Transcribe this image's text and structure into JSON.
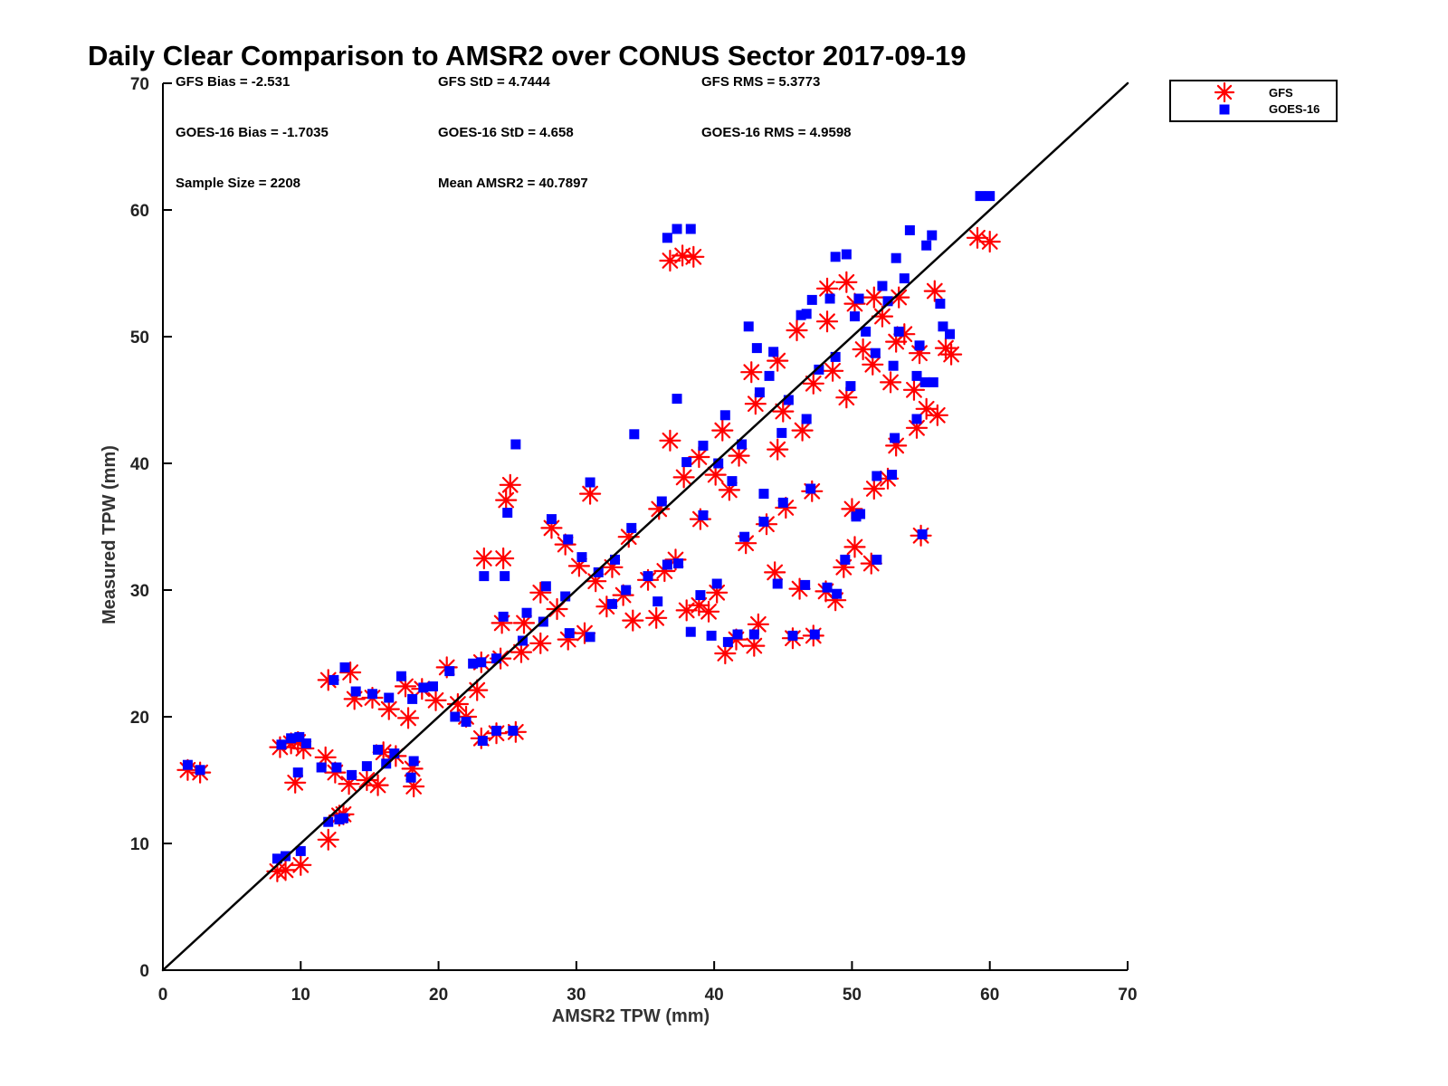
{
  "chart_data": {
    "type": "scatter",
    "title": "Daily Clear Comparison to AMSR2 over CONUS Sector 2017-09-19",
    "xlabel": "AMSR2 TPW (mm)",
    "ylabel": "Measured TPW (mm)",
    "xlim": [
      0,
      70
    ],
    "ylim": [
      0,
      70
    ],
    "xticks": [
      "0",
      "10",
      "20",
      "30",
      "40",
      "50",
      "60",
      "70"
    ],
    "yticks": [
      "0",
      "10",
      "20",
      "30",
      "40",
      "50",
      "60",
      "70"
    ],
    "legend_position": "top-right-outside",
    "grid": false,
    "reference_line": {
      "x": [
        0,
        70
      ],
      "y": [
        0,
        70
      ],
      "color": "#000000"
    },
    "stats": [
      "GFS Bias = -2.531",
      "GFS StD = 4.7444",
      "GFS RMS = 5.3773",
      "GOES-16 Bias = -1.7035",
      "GOES-16 StD = 4.658",
      "GOES-16 RMS = 4.9598",
      "Sample Size = 2208",
      "Mean AMSR2 = 40.7897"
    ],
    "series": [
      {
        "name": "GFS",
        "marker": "asterisk",
        "color": "#ff0000",
        "points": [
          [
            1.8,
            15.8
          ],
          [
            2.7,
            15.6
          ],
          [
            8.3,
            7.8
          ],
          [
            8.9,
            7.9
          ],
          [
            10.0,
            8.3
          ],
          [
            12.0,
            10.3
          ],
          [
            12.8,
            12.2
          ],
          [
            13.1,
            12.3
          ],
          [
            8.5,
            17.6
          ],
          [
            9.3,
            17.9
          ],
          [
            9.8,
            18.0
          ],
          [
            10.2,
            17.5
          ],
          [
            9.6,
            14.8
          ],
          [
            11.8,
            16.8
          ],
          [
            12.5,
            15.6
          ],
          [
            13.5,
            14.7
          ],
          [
            14.8,
            15.0
          ],
          [
            15.6,
            14.6
          ],
          [
            16.0,
            17.2
          ],
          [
            16.9,
            16.9
          ],
          [
            18.2,
            14.5
          ],
          [
            18.1,
            15.9
          ],
          [
            12.0,
            22.9
          ],
          [
            13.6,
            23.5
          ],
          [
            13.9,
            21.4
          ],
          [
            15.2,
            21.5
          ],
          [
            16.4,
            20.6
          ],
          [
            17.8,
            19.9
          ],
          [
            17.6,
            22.4
          ],
          [
            18.8,
            22.2
          ],
          [
            19.8,
            21.3
          ],
          [
            20.6,
            23.9
          ],
          [
            21.4,
            21.0
          ],
          [
            22.0,
            20.0
          ],
          [
            22.8,
            22.1
          ],
          [
            23.1,
            24.3
          ],
          [
            24.5,
            24.6
          ],
          [
            23.1,
            18.3
          ],
          [
            23.3,
            32.5
          ],
          [
            24.7,
            32.5
          ],
          [
            24.6,
            27.4
          ],
          [
            25.2,
            38.3
          ],
          [
            24.9,
            37.1
          ],
          [
            25.6,
            18.8
          ],
          [
            24.2,
            18.7
          ],
          [
            26.0,
            25.1
          ],
          [
            27.4,
            25.8
          ],
          [
            28.2,
            34.9
          ],
          [
            28.6,
            28.5
          ],
          [
            29.4,
            26.1
          ],
          [
            30.6,
            26.6
          ],
          [
            31.0,
            37.6
          ],
          [
            32.2,
            28.7
          ],
          [
            33.4,
            29.6
          ],
          [
            34.1,
            27.6
          ],
          [
            35.2,
            30.8
          ],
          [
            35.8,
            27.8
          ],
          [
            36.4,
            31.5
          ],
          [
            36.8,
            41.8
          ],
          [
            37.2,
            32.4
          ],
          [
            38.0,
            28.4
          ],
          [
            38.9,
            28.8
          ],
          [
            39.6,
            28.3
          ],
          [
            40.2,
            29.8
          ],
          [
            40.8,
            25.0
          ],
          [
            41.6,
            26.1
          ],
          [
            42.9,
            25.6
          ],
          [
            43.2,
            27.3
          ],
          [
            44.4,
            31.4
          ],
          [
            45.7,
            26.2
          ],
          [
            46.2,
            30.1
          ],
          [
            47.2,
            26.4
          ],
          [
            48.1,
            29.9
          ],
          [
            48.8,
            29.2
          ],
          [
            49.4,
            31.8
          ],
          [
            50.2,
            33.4
          ],
          [
            51.4,
            32.1
          ],
          [
            50.0,
            36.4
          ],
          [
            51.6,
            38.0
          ],
          [
            52.6,
            38.8
          ],
          [
            53.2,
            41.4
          ],
          [
            54.7,
            42.8
          ],
          [
            55.4,
            44.3
          ],
          [
            56.2,
            43.8
          ],
          [
            56.8,
            49.1
          ],
          [
            57.2,
            48.6
          ],
          [
            54.9,
            48.7
          ],
          [
            36.8,
            56.0
          ],
          [
            37.7,
            56.4
          ],
          [
            38.5,
            56.3
          ],
          [
            49.6,
            54.3
          ],
          [
            48.2,
            53.8
          ],
          [
            53.4,
            53.1
          ],
          [
            56.0,
            53.6
          ],
          [
            59.1,
            57.8
          ],
          [
            60.0,
            57.5
          ],
          [
            55.0,
            34.3
          ],
          [
            47.1,
            37.8
          ],
          [
            45.2,
            36.5
          ],
          [
            43.8,
            35.2
          ],
          [
            42.3,
            33.7
          ],
          [
            41.1,
            37.9
          ],
          [
            40.1,
            39.1
          ],
          [
            39.0,
            35.6
          ],
          [
            36.0,
            36.4
          ],
          [
            33.8,
            34.2
          ],
          [
            32.6,
            31.8
          ],
          [
            31.4,
            30.7
          ],
          [
            30.2,
            31.9
          ],
          [
            29.2,
            33.6
          ],
          [
            27.4,
            29.8
          ],
          [
            26.2,
            27.4
          ],
          [
            45.0,
            44.1
          ],
          [
            47.2,
            46.3
          ],
          [
            49.6,
            45.2
          ],
          [
            51.5,
            47.8
          ],
          [
            52.8,
            46.4
          ],
          [
            54.5,
            45.8
          ],
          [
            53.2,
            49.6
          ],
          [
            50.8,
            49.0
          ],
          [
            48.6,
            47.3
          ],
          [
            46.4,
            42.6
          ],
          [
            44.6,
            41.1
          ],
          [
            43.0,
            44.7
          ],
          [
            41.8,
            40.6
          ],
          [
            40.6,
            42.6
          ],
          [
            38.9,
            40.5
          ],
          [
            37.8,
            38.9
          ],
          [
            42.7,
            47.2
          ],
          [
            44.6,
            48.1
          ],
          [
            46.0,
            50.5
          ],
          [
            48.2,
            51.2
          ],
          [
            50.2,
            52.6
          ],
          [
            51.6,
            53.1
          ],
          [
            52.2,
            51.6
          ],
          [
            53.8,
            50.2
          ]
        ]
      },
      {
        "name": "GOES-16",
        "marker": "square",
        "color": "#0000ff",
        "points": [
          [
            1.8,
            16.2
          ],
          [
            2.7,
            15.8
          ],
          [
            8.3,
            8.8
          ],
          [
            8.9,
            9.0
          ],
          [
            10.0,
            9.4
          ],
          [
            12.0,
            11.7
          ],
          [
            12.8,
            11.9
          ],
          [
            13.1,
            12.0
          ],
          [
            8.6,
            17.8
          ],
          [
            9.3,
            18.3
          ],
          [
            9.9,
            18.4
          ],
          [
            10.4,
            17.9
          ],
          [
            9.8,
            15.6
          ],
          [
            11.5,
            16.0
          ],
          [
            12.6,
            16.0
          ],
          [
            13.7,
            15.4
          ],
          [
            14.8,
            16.1
          ],
          [
            15.6,
            17.4
          ],
          [
            16.2,
            16.3
          ],
          [
            16.8,
            17.1
          ],
          [
            18.2,
            16.5
          ],
          [
            18.0,
            15.2
          ],
          [
            12.4,
            22.9
          ],
          [
            13.2,
            23.9
          ],
          [
            14.0,
            22.0
          ],
          [
            15.2,
            21.8
          ],
          [
            16.4,
            21.5
          ],
          [
            17.3,
            23.2
          ],
          [
            18.1,
            21.4
          ],
          [
            18.9,
            22.3
          ],
          [
            19.6,
            22.4
          ],
          [
            20.8,
            23.6
          ],
          [
            21.2,
            20.0
          ],
          [
            22.0,
            19.6
          ],
          [
            22.5,
            24.2
          ],
          [
            23.1,
            24.3
          ],
          [
            24.2,
            24.6
          ],
          [
            23.2,
            18.1
          ],
          [
            23.3,
            31.1
          ],
          [
            24.8,
            31.1
          ],
          [
            24.7,
            27.9
          ],
          [
            25.6,
            41.5
          ],
          [
            25.0,
            36.1
          ],
          [
            25.4,
            18.9
          ],
          [
            24.2,
            18.9
          ],
          [
            26.1,
            26.0
          ],
          [
            27.6,
            27.5
          ],
          [
            28.2,
            35.6
          ],
          [
            29.2,
            29.5
          ],
          [
            29.5,
            26.6
          ],
          [
            31.0,
            26.3
          ],
          [
            31.0,
            38.5
          ],
          [
            32.6,
            28.9
          ],
          [
            33.6,
            30.0
          ],
          [
            34.2,
            42.3
          ],
          [
            35.2,
            31.1
          ],
          [
            35.9,
            29.1
          ],
          [
            36.6,
            32.0
          ],
          [
            37.3,
            45.1
          ],
          [
            37.4,
            32.1
          ],
          [
            38.3,
            26.7
          ],
          [
            39.0,
            29.6
          ],
          [
            39.8,
            26.4
          ],
          [
            40.2,
            30.5
          ],
          [
            41.0,
            25.9
          ],
          [
            41.7,
            26.5
          ],
          [
            42.9,
            26.5
          ],
          [
            43.6,
            37.6
          ],
          [
            44.6,
            30.5
          ],
          [
            45.7,
            26.4
          ],
          [
            46.6,
            30.4
          ],
          [
            47.3,
            26.5
          ],
          [
            48.2,
            30.2
          ],
          [
            48.9,
            29.7
          ],
          [
            49.5,
            32.4
          ],
          [
            50.3,
            35.8
          ],
          [
            51.8,
            32.4
          ],
          [
            50.6,
            36.0
          ],
          [
            51.8,
            39.0
          ],
          [
            52.9,
            39.1
          ],
          [
            53.1,
            42.0
          ],
          [
            54.7,
            43.5
          ],
          [
            55.3,
            46.4
          ],
          [
            55.9,
            46.4
          ],
          [
            56.6,
            50.8
          ],
          [
            57.1,
            50.2
          ],
          [
            54.9,
            49.3
          ],
          [
            36.6,
            57.8
          ],
          [
            37.3,
            58.5
          ],
          [
            38.3,
            58.5
          ],
          [
            49.6,
            56.5
          ],
          [
            48.8,
            56.3
          ],
          [
            53.2,
            56.2
          ],
          [
            55.8,
            58.0
          ],
          [
            59.3,
            61.1
          ],
          [
            60.0,
            61.1
          ],
          [
            55.1,
            34.4
          ],
          [
            47.0,
            38.0
          ],
          [
            45.0,
            36.9
          ],
          [
            43.6,
            35.4
          ],
          [
            42.2,
            34.2
          ],
          [
            41.3,
            38.6
          ],
          [
            40.3,
            40.0
          ],
          [
            39.2,
            35.9
          ],
          [
            36.2,
            37.0
          ],
          [
            34.0,
            34.9
          ],
          [
            32.8,
            32.4
          ],
          [
            31.6,
            31.4
          ],
          [
            30.4,
            32.6
          ],
          [
            29.4,
            34.0
          ],
          [
            27.8,
            30.3
          ],
          [
            26.4,
            28.2
          ],
          [
            45.4,
            45.0
          ],
          [
            47.6,
            47.4
          ],
          [
            49.9,
            46.1
          ],
          [
            51.7,
            48.7
          ],
          [
            53.0,
            47.7
          ],
          [
            54.7,
            46.9
          ],
          [
            53.4,
            50.4
          ],
          [
            51.0,
            50.4
          ],
          [
            48.8,
            48.4
          ],
          [
            46.7,
            43.5
          ],
          [
            44.9,
            42.4
          ],
          [
            43.3,
            45.6
          ],
          [
            42.0,
            41.5
          ],
          [
            40.8,
            43.8
          ],
          [
            39.2,
            41.4
          ],
          [
            38.0,
            40.1
          ],
          [
            42.5,
            50.8
          ],
          [
            44.3,
            48.8
          ],
          [
            46.3,
            51.7
          ],
          [
            48.4,
            53.0
          ],
          [
            50.5,
            53.0
          ],
          [
            52.2,
            54.0
          ],
          [
            53.8,
            54.6
          ],
          [
            54.2,
            58.4
          ],
          [
            47.1,
            52.9
          ],
          [
            43.1,
            49.1
          ],
          [
            44.0,
            46.9
          ],
          [
            46.7,
            51.8
          ],
          [
            50.2,
            51.6
          ],
          [
            52.6,
            52.8
          ],
          [
            55.4,
            57.2
          ],
          [
            56.4,
            52.6
          ]
        ]
      }
    ]
  }
}
